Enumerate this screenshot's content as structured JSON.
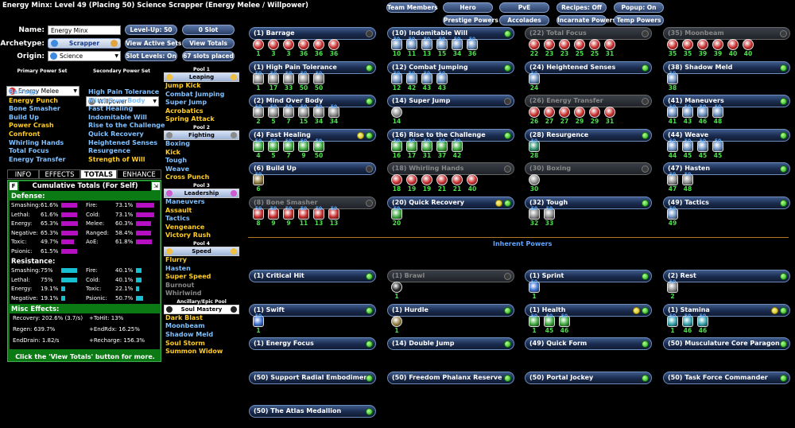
{
  "title": "Energy Minx: Level 49 (Placing 50) Science Scrapper (Energy Melee / Willpower)",
  "form": {
    "name_label": "Name:",
    "name_value": "Energy Minx",
    "archetype_label": "Archetype:",
    "archetype_value": "Scrapper",
    "origin_label": "Origin:",
    "origin_value": "Science"
  },
  "buttons": {
    "level_up": "Level-Up: 50",
    "slot": "0 Slot",
    "view_active_sets": "View Active Sets",
    "view_totals": "View Totals",
    "slot_levels": "Slot Levels: On",
    "slots_placed": "67 slots placed"
  },
  "top_buttons": [
    "Team Members",
    "Hero",
    "PvE",
    "Recipes: Off",
    "Popup: On",
    "Prestige Powers",
    "Accolades",
    "Incarnate Powers",
    "Temp Powers"
  ],
  "primary": {
    "header": "Primary Power Set",
    "value": "Energy Melee",
    "powers": [
      {
        "n": "Barrage",
        "c": "b"
      },
      {
        "n": "Energy Punch",
        "c": "y"
      },
      {
        "n": "Bone Smasher",
        "c": "b"
      },
      {
        "n": "Build Up",
        "c": "b"
      },
      {
        "n": "Power Crash",
        "c": "y"
      },
      {
        "n": "Confront",
        "c": "y"
      },
      {
        "n": "Whirling Hands",
        "c": "b"
      },
      {
        "n": "Total Focus",
        "c": "b"
      },
      {
        "n": "Energy Transfer",
        "c": "b"
      }
    ]
  },
  "secondary": {
    "header": "Secondary Power Set",
    "value": "Willpower",
    "powers": [
      {
        "n": "High Pain Tolerance",
        "c": "b"
      },
      {
        "n": "Mind Over Body",
        "c": "b"
      },
      {
        "n": "Fast Healing",
        "c": "b"
      },
      {
        "n": "Indomitable Will",
        "c": "b"
      },
      {
        "n": "Rise to the Challenge",
        "c": "b"
      },
      {
        "n": "Quick Recovery",
        "c": "b"
      },
      {
        "n": "Heightened Senses",
        "c": "b"
      },
      {
        "n": "Resurgence",
        "c": "b"
      },
      {
        "n": "Strength of Will",
        "c": "y"
      }
    ]
  },
  "pools": [
    {
      "header": "Pool 1",
      "name": "Leaping",
      "powers": [
        {
          "n": "Jump Kick",
          "c": "y"
        },
        {
          "n": "Combat Jumping",
          "c": "b"
        },
        {
          "n": "Super Jump",
          "c": "b"
        },
        {
          "n": "Acrobatics",
          "c": "y"
        },
        {
          "n": "Spring Attack",
          "c": "y"
        }
      ]
    },
    {
      "header": "Pool 2",
      "name": "Fighting",
      "powers": [
        {
          "n": "Boxing",
          "c": "b"
        },
        {
          "n": "Kick",
          "c": "y"
        },
        {
          "n": "Tough",
          "c": "b"
        },
        {
          "n": "Weave",
          "c": "b"
        },
        {
          "n": "Cross Punch",
          "c": "y"
        }
      ]
    },
    {
      "header": "Pool 3",
      "name": "Leadership",
      "powers": [
        {
          "n": "Maneuvers",
          "c": "b"
        },
        {
          "n": "Assault",
          "c": "y"
        },
        {
          "n": "Tactics",
          "c": "b"
        },
        {
          "n": "Vengeance",
          "c": "y"
        },
        {
          "n": "Victory Rush",
          "c": "y"
        }
      ]
    },
    {
      "header": "Pool 4",
      "name": "Speed",
      "powers": [
        {
          "n": "Flurry",
          "c": "y"
        },
        {
          "n": "Hasten",
          "c": "b"
        },
        {
          "n": "Super Speed",
          "c": "y"
        },
        {
          "n": "Burnout",
          "c": "g"
        },
        {
          "n": "Whirlwind",
          "c": "g"
        }
      ]
    },
    {
      "header": "Ancillary/Epic Pool",
      "name": "Soul Mastery",
      "powers": [
        {
          "n": "Dark Blast",
          "c": "y"
        },
        {
          "n": "Moonbeam",
          "c": "b"
        },
        {
          "n": "Shadow Meld",
          "c": "b"
        },
        {
          "n": "Soul Storm",
          "c": "y"
        },
        {
          "n": "Summon Widow",
          "c": "y"
        }
      ]
    }
  ],
  "tabs": [
    "INFO",
    "EFFECTS",
    "TOTALS",
    "ENHANCE"
  ],
  "totals": {
    "f_btn": "F",
    "title": "Cumulative Totals (For Self)",
    "defense_head": "Defense:",
    "defense": [
      {
        "l": "Smashing:",
        "v": "61.6%",
        "f": 0.616
      },
      {
        "l": "Fire:",
        "v": "73.1%",
        "f": 0.731
      },
      {
        "l": "Lethal:",
        "v": "61.6%",
        "f": 0.616
      },
      {
        "l": "Cold:",
        "v": "73.1%",
        "f": 0.731
      },
      {
        "l": "Energy:",
        "v": "65.3%",
        "f": 0.653
      },
      {
        "l": "Melee:",
        "v": "60.3%",
        "f": 0.603
      },
      {
        "l": "Negative:",
        "v": "65.3%",
        "f": 0.653
      },
      {
        "l": "Ranged:",
        "v": "58.4%",
        "f": 0.584
      },
      {
        "l": "Toxic:",
        "v": "49.7%",
        "f": 0.497
      },
      {
        "l": "AoE:",
        "v": "61.8%",
        "f": 0.618
      },
      {
        "l": "Psionic:",
        "v": "61.5%",
        "f": 0.615
      }
    ],
    "resist_head": "Resistance:",
    "resist": [
      {
        "l": "Smashing:",
        "v": "75%",
        "f": 0.75
      },
      {
        "l": "Fire:",
        "v": "40.1%",
        "f": 0.401
      },
      {
        "l": "Lethal:",
        "v": "75%",
        "f": 0.75
      },
      {
        "l": "Cold:",
        "v": "40.1%",
        "f": 0.401
      },
      {
        "l": "Energy:",
        "v": "19.1%",
        "f": 0.191
      },
      {
        "l": "Toxic:",
        "v": "22.1%",
        "f": 0.221
      },
      {
        "l": "Negative:",
        "v": "19.1%",
        "f": 0.191
      },
      {
        "l": "Psionic:",
        "v": "50.7%",
        "f": 0.507
      }
    ],
    "misc_head": "Misc Effects:",
    "misc": [
      "Recovery: 202.6% (3.7/s)",
      "+ToHit: 13%",
      "Regen: 639.7%",
      "+EndRdx: 16.25%",
      "EndDrain: 1.82/s",
      "+Recharge: 156.3%"
    ],
    "footer": "Click the 'View Totals' button for more."
  },
  "slots": [
    {
      "l": "(1) Barrage",
      "lv": [
        "1",
        "3",
        "3",
        "36",
        "36",
        "36"
      ],
      "col": "#c62828",
      "d": "off"
    },
    {
      "l": "(10) Indomitable Will",
      "lv": [
        "10",
        "11",
        "13",
        "15",
        "34",
        "36"
      ],
      "t": [
        "50",
        "50",
        "50",
        "50",
        "50",
        "50"
      ],
      "col": "#6a8fbf",
      "d": "on"
    },
    {
      "l": "(22) Total Focus",
      "lv": [
        "22",
        "23",
        "23",
        "25",
        "25",
        "31"
      ],
      "col": "#c62828",
      "d": "off",
      "dim": true
    },
    {
      "l": "(35) Moonbeam",
      "lv": [
        "35",
        "35",
        "39",
        "39",
        "40",
        "40"
      ],
      "col": "#c62828",
      "d": "off",
      "dim": true
    },
    {
      "l": "(1) High Pain Tolerance",
      "lv": [
        "1",
        "17",
        "33",
        "50",
        "50"
      ],
      "t": [
        "50",
        "50",
        "50",
        "50",
        "50"
      ],
      "col": "#8c8c8c",
      "d": "on"
    },
    {
      "l": "(12) Combat Jumping",
      "lv": [
        "12",
        "42",
        "43",
        "43"
      ],
      "t": [
        "50",
        "50",
        "50",
        "50"
      ],
      "col": "#6a8fbf",
      "d": "on"
    },
    {
      "l": "(24) Heightened Senses",
      "lv": [
        "24"
      ],
      "t": [
        "50"
      ],
      "col": "#6a8fbf",
      "d": "on"
    },
    {
      "l": "(38) Shadow Meld",
      "lv": [
        "38"
      ],
      "t": [
        "50"
      ],
      "col": "#6a8fbf",
      "d": "on"
    },
    {
      "l": "(2) Mind Over Body",
      "lv": [
        "2",
        "5",
        "7",
        "15",
        "34",
        "34"
      ],
      "t": [
        "50",
        "50",
        "50",
        "50",
        "50",
        "50"
      ],
      "col": "#8c8c8c",
      "d": "on"
    },
    {
      "l": "(14) Super Jump",
      "lv": [
        "14"
      ],
      "col": "#8c8c8c",
      "d": "off"
    },
    {
      "l": "(26) Energy Transfer",
      "lv": [
        "26",
        "27",
        "27",
        "29",
        "29",
        "31"
      ],
      "col": "#c62828",
      "d": "off",
      "dim": true
    },
    {
      "l": "(41) Maneuvers",
      "lv": [
        "41",
        "43",
        "46",
        "48"
      ],
      "t": [
        "50",
        "50",
        "50",
        "50"
      ],
      "col": "#6a8fbf",
      "d": "on"
    },
    {
      "l": "(4) Fast Healing",
      "lv": [
        "4",
        "5",
        "7",
        "9",
        "50"
      ],
      "t": [
        "50",
        "50",
        "50",
        "50",
        "50"
      ],
      "col": "#3aa83a",
      "d": "y2"
    },
    {
      "l": "(16) Rise to the Challenge",
      "lv": [
        "16",
        "17",
        "31",
        "37",
        "42"
      ],
      "t": [
        "50",
        "50",
        "50",
        "50",
        "50"
      ],
      "col": "#3aa83a",
      "d": "on"
    },
    {
      "l": "(28) Resurgence",
      "lv": [
        "28"
      ],
      "t": [
        "50"
      ],
      "col": "#2f8f6f",
      "d": "on"
    },
    {
      "l": "(44) Weave",
      "lv": [
        "44",
        "45",
        "45",
        "45"
      ],
      "t": [
        "50",
        "50",
        "50",
        "50"
      ],
      "col": "#6a8fbf",
      "d": "on"
    },
    {
      "l": "(6) Build Up",
      "lv": [
        "6"
      ],
      "t": [
        "50"
      ],
      "col": "#8c7a3a",
      "d": "off"
    },
    {
      "l": "(18) Whirling Hands",
      "lv": [
        "18",
        "19",
        "19",
        "21",
        "21",
        "40"
      ],
      "col": "#c62828",
      "d": "off",
      "dim": true
    },
    {
      "l": "(30) Boxing",
      "lv": [
        "30"
      ],
      "col": "#8c8c8c",
      "d": "off",
      "dim": true
    },
    {
      "l": "(47) Hasten",
      "lv": [
        "47",
        "48"
      ],
      "t": [
        "50",
        "50"
      ],
      "col": "#8c8c8c",
      "d": "on"
    },
    {
      "l": "(8) Bone Smasher",
      "lv": [
        "8",
        "9",
        "9",
        "11",
        "13",
        "13"
      ],
      "t": [
        "50",
        "50",
        "50",
        "50",
        "50",
        "50"
      ],
      "col": "#c62828",
      "d": "off",
      "dim": true
    },
    {
      "l": "(20) Quick Recovery",
      "lv": [
        "20"
      ],
      "t": [
        "50"
      ],
      "col": "#3aa83a",
      "d": "y2"
    },
    {
      "l": "(32) Tough",
      "lv": [
        "32",
        "33"
      ],
      "t": [
        "50",
        "50"
      ],
      "col": "#8c8c8c",
      "d": "on"
    },
    {
      "l": "(49) Tactics",
      "lv": [
        "49"
      ],
      "t": [
        "50"
      ],
      "col": "#6a8fbf",
      "d": "on"
    }
  ],
  "inherent_title": "Inherent Powers",
  "inherent": [
    {
      "l": "(1) Critical Hit",
      "lv": [],
      "d": "on"
    },
    {
      "l": "(1) Brawl",
      "lv": [
        "1"
      ],
      "col": "#222",
      "d": "off",
      "dim": true
    },
    {
      "l": "(1) Sprint",
      "lv": [
        "1"
      ],
      "t": [
        "50"
      ],
      "col": "#3a6fd0",
      "d": "on"
    },
    {
      "l": "(2) Rest",
      "lv": [
        "2"
      ],
      "t": [
        "50"
      ],
      "col": "#8c8c8c",
      "d": "on"
    },
    {
      "l": "(1) Swift",
      "lv": [
        "1"
      ],
      "t": [
        "50"
      ],
      "col": "#3a6fd0",
      "d": "on"
    },
    {
      "l": "(1) Hurdle",
      "lv": [
        "1"
      ],
      "col": "#8c7a3a",
      "d": "on"
    },
    {
      "l": "(1) Health",
      "lv": [
        "1",
        "45",
        "46"
      ],
      "t": [
        "50",
        "50",
        "50"
      ],
      "col": "#3aa83a",
      "d": "y2"
    },
    {
      "l": "(1) Stamina",
      "lv": [
        "1",
        "46",
        "46"
      ],
      "t": [
        "50",
        "50",
        "50"
      ],
      "col": "#2f9fa8",
      "d": "y2"
    },
    {
      "l": "(1) Energy Focus",
      "lv": [],
      "d": "on"
    },
    {
      "l": "(14) Double Jump",
      "lv": [],
      "d": "on"
    },
    {
      "l": "(49) Quick Form",
      "lv": [],
      "d": "on"
    },
    {
      "l": "(50) Musculature Core Paragon",
      "lv": [],
      "d": "on"
    },
    {
      "l": "(50) Support Radial Embodiment",
      "lv": [],
      "d": "on"
    },
    {
      "l": "(50) Freedom Phalanx Reserve",
      "lv": [],
      "d": "on"
    },
    {
      "l": "(50) Portal Jockey",
      "lv": [],
      "d": "on"
    },
    {
      "l": "(50) Task Force Commander",
      "lv": [],
      "d": "on"
    },
    {
      "l": "(50) The Atlas Medallion",
      "lv": [],
      "d": "on"
    }
  ],
  "colors": {
    "gold": "#ffcc22",
    "blue": "#7fc0ff",
    "green": "#0b7a14",
    "accent": "#5fa5ff"
  }
}
